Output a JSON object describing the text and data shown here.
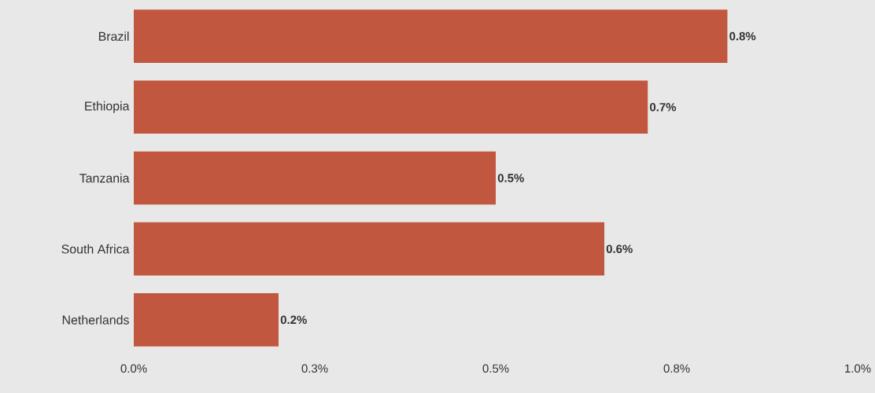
{
  "chart_data": {
    "type": "bar",
    "orientation": "horizontal",
    "categories": [
      "Brazil",
      "Ethiopia",
      "Tanzania",
      "South Africa",
      "Netherlands"
    ],
    "values": [
      0.82,
      0.71,
      0.5,
      0.65,
      0.2
    ],
    "value_labels": [
      "0.8%",
      "0.7%",
      "0.5%",
      "0.6%",
      "0.2%"
    ],
    "color": "#c0573e",
    "xlim": [
      0,
      1
    ],
    "xticks": [
      {
        "value": 0,
        "label": "0.0%"
      },
      {
        "value": 0.25,
        "label": "0.3%"
      },
      {
        "value": 0.5,
        "label": "0.5%"
      },
      {
        "value": 0.75,
        "label": "0.8%"
      },
      {
        "value": 1,
        "label": "1.0%"
      }
    ],
    "grid": false
  }
}
